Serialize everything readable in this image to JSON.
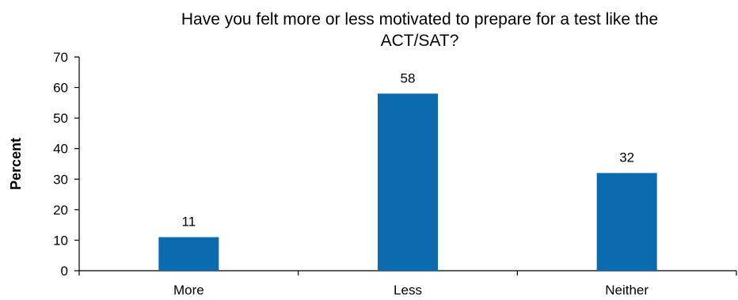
{
  "chart_data": {
    "type": "bar",
    "title": "Have you felt more or less motivated to prepare for a test like the ACT/SAT?",
    "title_lines": [
      "Have you felt more or less motivated to prepare for a test like the",
      "ACT/SAT?"
    ],
    "xlabel": "",
    "ylabel": "Percent",
    "categories": [
      "More",
      "Less",
      "Neither"
    ],
    "values": [
      11,
      58,
      32
    ],
    "data_labels": [
      "11",
      "58",
      "32"
    ],
    "ylim": [
      0,
      70
    ],
    "yticks": [
      0,
      10,
      20,
      30,
      40,
      50,
      60,
      70
    ],
    "grid": false,
    "legend": "none",
    "bar_color": "#0B6BAE"
  }
}
